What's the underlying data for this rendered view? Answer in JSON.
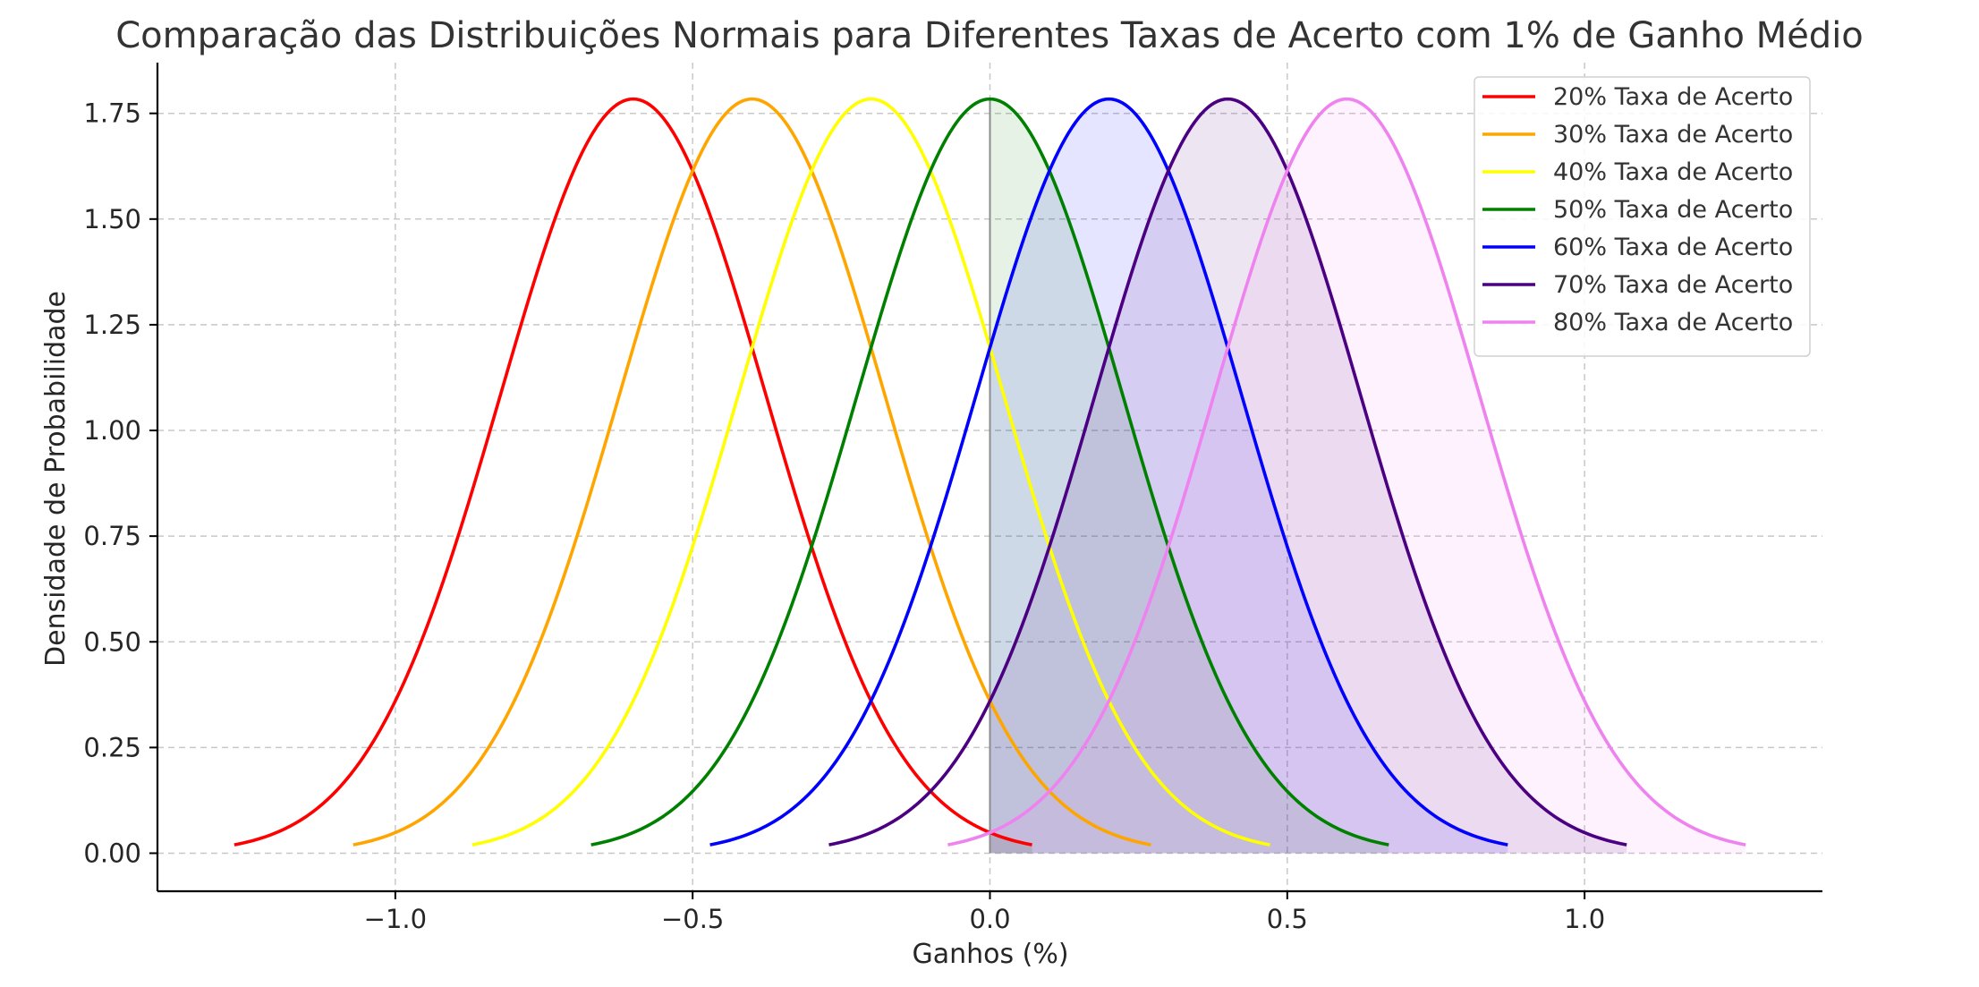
{
  "chart_data": {
    "type": "line",
    "title": "Comparação das Distribuições Normais para Diferentes Taxas de Acerto com 1% de Ganho Médio",
    "xlabel": "Ganhos (%)",
    "ylabel": "Densidade de Probabilidade",
    "xlim": [
      -1.4,
      1.4
    ],
    "ylim": [
      -0.09,
      1.87
    ],
    "xticks": [
      -1.0,
      -0.5,
      0.0,
      0.5,
      1.0
    ],
    "xtick_labels": [
      "−1.0",
      "−0.5",
      "0.0",
      "0.5",
      "1.0"
    ],
    "yticks": [
      0.0,
      0.25,
      0.5,
      0.75,
      1.0,
      1.25,
      1.5,
      1.75
    ],
    "ytick_labels": [
      "0.00",
      "0.25",
      "0.50",
      "0.75",
      "1.00",
      "1.25",
      "1.50",
      "1.75"
    ],
    "grid": true,
    "legend_position": "top-right",
    "distribution": "normal",
    "std_dev": 0.2236,
    "peak_density": 1.784,
    "curve_range_sigmas": 3,
    "shaded_region": "x >= 0",
    "series": [
      {
        "name": "20% Taxa de Acerto",
        "mean": -0.6,
        "color": "#ff0000",
        "fill": false
      },
      {
        "name": "30% Taxa de Acerto",
        "mean": -0.4,
        "color": "#ffa500",
        "fill": false
      },
      {
        "name": "40% Taxa de Acerto",
        "mean": -0.2,
        "color": "#ffff00",
        "fill": false
      },
      {
        "name": "50% Taxa de Acerto",
        "mean": 0.0,
        "color": "#008000",
        "fill": true
      },
      {
        "name": "60% Taxa de Acerto",
        "mean": 0.2,
        "color": "#0000ff",
        "fill": true
      },
      {
        "name": "70% Taxa de Acerto",
        "mean": 0.4,
        "color": "#4b0082",
        "fill": true
      },
      {
        "name": "80% Taxa de Acerto",
        "mean": 0.6,
        "color": "#ee82ee",
        "fill": true
      }
    ]
  }
}
